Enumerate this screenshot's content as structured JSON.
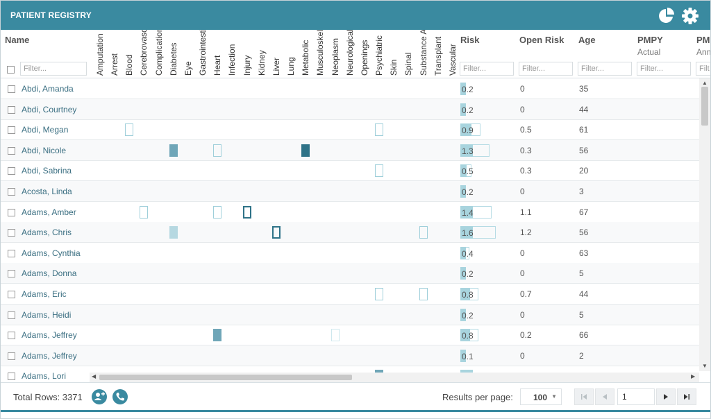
{
  "app": {
    "title": "PATIENT REGISTRY"
  },
  "columns": {
    "name": "Name",
    "conditions": [
      "Amputation",
      "Arrest",
      "Blood",
      "Cerebrovascular",
      "Complications",
      "Diabetes",
      "Eye",
      "Gastrointestinal",
      "Heart",
      "Infection",
      "Injury",
      "Kidney",
      "Liver",
      "Lung",
      "Metabolic",
      "Musculoskeletal",
      "Neoplasm",
      "Neurological",
      "Openings",
      "Psychiatric",
      "Skin",
      "Spinal",
      "Substance Abuse",
      "Transplant",
      "Vascular"
    ],
    "risk": "Risk",
    "open_risk": "Open Risk",
    "age": "Age",
    "pmpy": "PMPY",
    "pmpy_sub": "Actual",
    "pm2": "PM",
    "pm2_sub": "Ann"
  },
  "filters": {
    "name_placeholder": "Filter...",
    "risk_placeholder": "Filter...",
    "open_risk_placeholder": "Filter...",
    "age_placeholder": "Filter...",
    "pmpy_placeholder": "Filter...",
    "pm2_placeholder": "Filt"
  },
  "rows": [
    {
      "name": "Abdi, Amanda",
      "risk": "0.2",
      "open_risk": "0",
      "age": "35"
    },
    {
      "name": "Abdi, Courtney",
      "risk": "0.2",
      "open_risk": "0",
      "age": "44"
    },
    {
      "name": "Abdi, Megan",
      "risk": "0.9",
      "open_risk": "0.5",
      "age": "61"
    },
    {
      "name": "Abdi, Nicole",
      "risk": "1.3",
      "open_risk": "0.3",
      "age": "56"
    },
    {
      "name": "Abdi, Sabrina",
      "risk": "0.5",
      "open_risk": "0.3",
      "age": "20"
    },
    {
      "name": "Acosta, Linda",
      "risk": "0.2",
      "open_risk": "0",
      "age": "3"
    },
    {
      "name": "Adams, Amber",
      "risk": "1.4",
      "open_risk": "1.1",
      "age": "67"
    },
    {
      "name": "Adams, Chris",
      "risk": "1.6",
      "open_risk": "1.2",
      "age": "56"
    },
    {
      "name": "Adams, Cynthia",
      "risk": "0.4",
      "open_risk": "0",
      "age": "63"
    },
    {
      "name": "Adams, Donna",
      "risk": "0.2",
      "open_risk": "0",
      "age": "5"
    },
    {
      "name": "Adams, Eric",
      "risk": "0.8",
      "open_risk": "0.7",
      "age": "44"
    },
    {
      "name": "Adams, Heidi",
      "risk": "0.2",
      "open_risk": "0",
      "age": "5"
    },
    {
      "name": "Adams, Jeffrey",
      "risk": "0.8",
      "open_risk": "0.2",
      "age": "66"
    },
    {
      "name": "Adams, Jeffrey",
      "risk": "0.1",
      "open_risk": "0",
      "age": "2"
    },
    {
      "name": "Adams, Lori",
      "risk": "",
      "open_risk": "",
      "age": ""
    }
  ],
  "footer": {
    "total_label": "Total Rows: 3371",
    "results_per_page_label": "Results per page:",
    "results_per_page_value": "100",
    "page_number": "1"
  },
  "icons": {
    "report": "pie-chart-icon",
    "settings": "gear-icon",
    "add_patient": "add-user-icon",
    "call": "phone-icon"
  },
  "colors": {
    "brand": "#3a8aa0",
    "name_link": "#3b6f82",
    "risk_bar": "#a8d4de"
  }
}
